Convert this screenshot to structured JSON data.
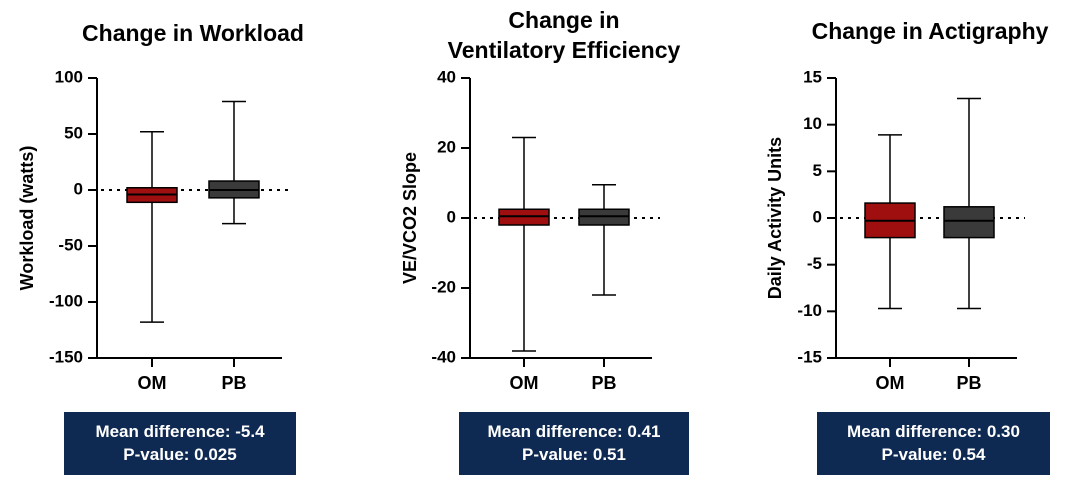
{
  "chart_data": [
    {
      "type": "box",
      "title": [
        "Change in Workload"
      ],
      "ylabel": "Workload (watts)",
      "ylim": [
        -150,
        100
      ],
      "yticks": [
        100,
        50,
        0,
        -50,
        -100,
        -150
      ],
      "reference_line": 0,
      "categories": [
        "OM",
        "PB"
      ],
      "boxes": [
        {
          "category": "OM",
          "min": -118,
          "q1": -11,
          "median": -4,
          "q3": 2,
          "max": 52,
          "color": "#a00f0f"
        },
        {
          "category": "PB",
          "min": -30,
          "q1": -7,
          "median": 0,
          "q3": 8,
          "max": 79,
          "color": "#3a3a3a"
        }
      ],
      "stats": {
        "mean_difference": "Mean difference: -5.4",
        "p_value": "P-value: 0.025"
      }
    },
    {
      "type": "box",
      "title": [
        "Change in",
        "Ventilatory Efficiency"
      ],
      "ylabel": "VE/VCO2 Slope",
      "ylim": [
        -40,
        40
      ],
      "yticks": [
        40,
        20,
        0,
        -20,
        -40
      ],
      "reference_line": 0,
      "categories": [
        "OM",
        "PB"
      ],
      "boxes": [
        {
          "category": "OM",
          "min": -38,
          "q1": -2,
          "median": 0.5,
          "q3": 2.5,
          "max": 23,
          "color": "#a00f0f"
        },
        {
          "category": "PB",
          "min": -22,
          "q1": -2,
          "median": 0.5,
          "q3": 2.5,
          "max": 9.5,
          "color": "#3a3a3a"
        }
      ],
      "stats": {
        "mean_difference": "Mean difference: 0.41",
        "p_value": "P-value: 0.51"
      }
    },
    {
      "type": "box",
      "title": [
        "Change in Actigraphy"
      ],
      "ylabel": "Daily Activity Units",
      "ylim": [
        -15,
        15
      ],
      "yticks": [
        15,
        10,
        5,
        0,
        -5,
        -10,
        -15
      ],
      "reference_line": 0,
      "categories": [
        "OM",
        "PB"
      ],
      "boxes": [
        {
          "category": "OM",
          "min": -9.7,
          "q1": -2.1,
          "median": -0.3,
          "q3": 1.6,
          "max": 8.9,
          "color": "#a00f0f"
        },
        {
          "category": "PB",
          "min": -9.7,
          "q1": -2.1,
          "median": -0.3,
          "q3": 1.2,
          "max": 12.8,
          "color": "#3a3a3a"
        }
      ],
      "stats": {
        "mean_difference": "Mean difference: 0.30",
        "p_value": "P-value: 0.54"
      }
    }
  ]
}
